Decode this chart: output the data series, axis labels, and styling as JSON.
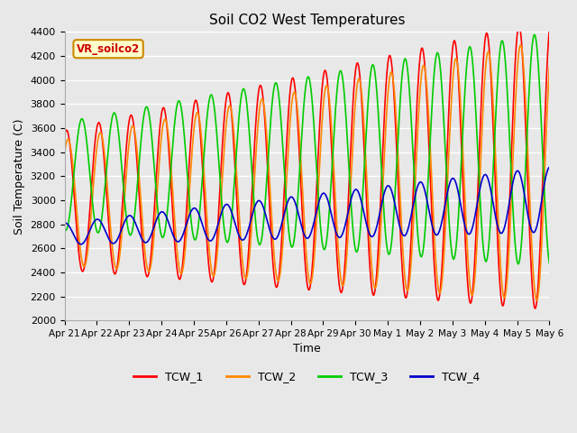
{
  "title": "Soil CO2 West Temperatures",
  "xlabel": "Time",
  "ylabel": "Soil Temperature (C)",
  "ylim": [
    2000,
    4400
  ],
  "annotation_text": "VR_soilco2",
  "annotation_color": "#cc0000",
  "annotation_bg": "#ffffcc",
  "annotation_border": "#cc8800",
  "background_color": "#e8e8e8",
  "grid_color": "white",
  "colors": {
    "TCW_1": "#ff0000",
    "TCW_2": "#ff8800",
    "TCW_3": "#00cc00",
    "TCW_4": "#0000cc"
  },
  "tick_labels": [
    "Apr 21",
    "Apr 22",
    "Apr 23",
    "Apr 24",
    "Apr 25",
    "Apr 26",
    "Apr 27",
    "Apr 28",
    "Apr 29",
    "Apr 30",
    "May 1",
    "May 2",
    "May 3",
    "May 4",
    "May 5",
    "May 6"
  ],
  "tick_positions": [
    0,
    1,
    2,
    3,
    4,
    5,
    6,
    7,
    8,
    9,
    10,
    11,
    12,
    13,
    14,
    15
  ]
}
